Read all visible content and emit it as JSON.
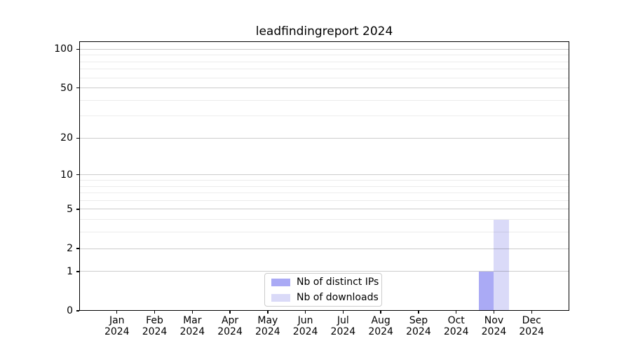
{
  "chart_data": {
    "type": "bar",
    "title": "leadfindingreport 2024",
    "scale": "log1p",
    "categories": [
      "Jan",
      "Feb",
      "Mar",
      "Apr",
      "May",
      "Jun",
      "Jul",
      "Aug",
      "Sep",
      "Oct",
      "Nov",
      "Dec"
    ],
    "year_label": "2024",
    "series": [
      {
        "name": "Nb of distinct IPs",
        "color": "#aaaaf5",
        "values": [
          0,
          0,
          0,
          0,
          0,
          0,
          0,
          0,
          0,
          0,
          1,
          0
        ]
      },
      {
        "name": "Nb of downloads",
        "color": "#dadaf8",
        "values": [
          0,
          0,
          0,
          0,
          0,
          0,
          0,
          0,
          0,
          0,
          4,
          0
        ]
      }
    ],
    "y_major_ticks": [
      0,
      1,
      2,
      5,
      10,
      20,
      50,
      100
    ],
    "y_minor_gridlines": [
      3,
      4,
      6,
      7,
      8,
      9,
      30,
      40,
      60,
      70,
      80,
      90
    ],
    "ylim": [
      0,
      115
    ],
    "grid": "horizontal",
    "legend_position": "bottom-center",
    "colors": {
      "axis": "#000000",
      "major_grid": "#cccccc",
      "minor_grid": "#ebebeb",
      "background": "#ffffff"
    }
  }
}
